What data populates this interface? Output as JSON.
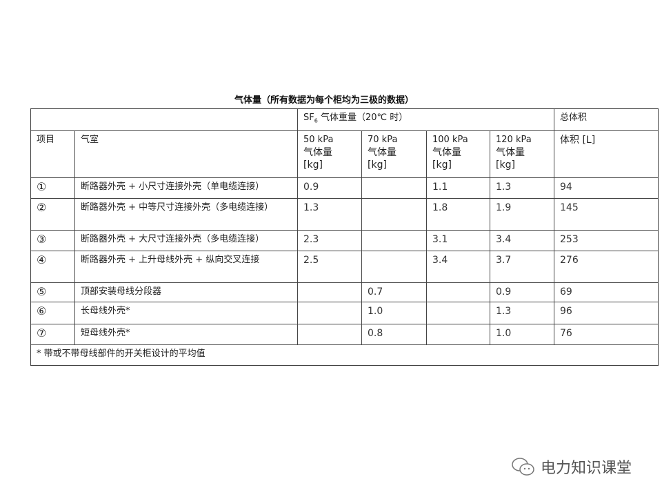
{
  "title": "气体量（所有数据为每个柜均为三极的数据）",
  "header": {
    "sf6_prefix": "SF",
    "sf6_sub": "6",
    "sf6_rest": " 气体重量（20℃ 时）",
    "total_volume": "总体积",
    "item": "项目",
    "chamber": "气室",
    "pressures": [
      {
        "p": "50 kPa",
        "q": "气体量",
        "u": "[kg]"
      },
      {
        "p": "70 kPa",
        "q": "气体量",
        "u": "[kg]"
      },
      {
        "p": "100 kPa",
        "q": "气体量",
        "u": "[kg]"
      },
      {
        "p": "120 kPa",
        "q": "气体量",
        "u": "[kg]"
      }
    ],
    "volume": "体积 [L]"
  },
  "rows": [
    {
      "no": "①",
      "name": "断路器外壳 + 小尺寸连接外壳（单电缆连接）",
      "v50": "0.9",
      "v70": "",
      "v100": "1.1",
      "v120": "1.3",
      "vol": "94"
    },
    {
      "no": "②",
      "name": "断路器外壳 + 中等尺寸连接外壳（多电缆连接）",
      "v50": "1.3",
      "v70": "",
      "v100": "1.8",
      "v120": "1.9",
      "vol": "145"
    },
    {
      "no": "③",
      "name": "断路器外壳 + 大尺寸连接外壳（多电缆连接）",
      "v50": "2.3",
      "v70": "",
      "v100": "3.1",
      "v120": "3.4",
      "vol": "253"
    },
    {
      "no": "④",
      "name": "断路器外壳 + 上升母线外壳 + 纵向交叉连接",
      "v50": "2.5",
      "v70": "",
      "v100": "3.4",
      "v120": "3.7",
      "vol": "276"
    },
    {
      "no": "⑤",
      "name": "顶部安装母线分段器",
      "v50": "",
      "v70": "0.7",
      "v100": "",
      "v120": "0.9",
      "vol": "69"
    },
    {
      "no": "⑥",
      "name": "长母线外壳*",
      "v50": "",
      "v70": "1.0",
      "v100": "",
      "v120": "1.3",
      "vol": "96"
    },
    {
      "no": "⑦",
      "name": "短母线外壳*",
      "v50": "",
      "v70": "0.8",
      "v100": "",
      "v120": "1.0",
      "vol": "76"
    }
  ],
  "footnote": "*  带或不带母线部件的开关柜设计的平均值",
  "watermark": "电力知识课堂"
}
